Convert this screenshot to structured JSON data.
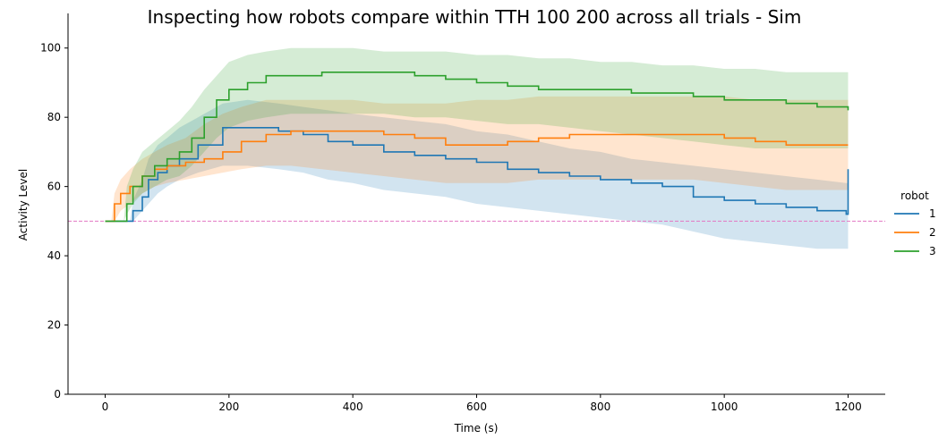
{
  "chart_data": {
    "type": "line",
    "title": "Inspecting how robots compare within TTH 100 200 across all trials - Sim",
    "xlabel": "Time (s)",
    "ylabel": "Activity Level",
    "xlim": [
      -60,
      1260
    ],
    "ylim": [
      0,
      110
    ],
    "x_ticks": [
      0,
      200,
      400,
      600,
      800,
      1000,
      1200
    ],
    "y_ticks": [
      0,
      20,
      40,
      60,
      80,
      100
    ],
    "grid": false,
    "reference_line": {
      "y": 50,
      "color": "#e377c2",
      "style": "dashed"
    },
    "legend": {
      "title": "robot",
      "placement": "right"
    },
    "series": [
      {
        "name": "1",
        "color": "#1f77b4",
        "x": [
          0,
          40,
          45,
          60,
          70,
          85,
          100,
          120,
          150,
          190,
          230,
          280,
          320,
          360,
          400,
          450,
          500,
          550,
          600,
          650,
          700,
          750,
          800,
          850,
          900,
          950,
          1000,
          1050,
          1100,
          1150,
          1197,
          1200
        ],
        "y": [
          50,
          50,
          53,
          57,
          62,
          64,
          66,
          68,
          72,
          77,
          77,
          76,
          75,
          73,
          72,
          70,
          69,
          68,
          67,
          65,
          64,
          63,
          62,
          61,
          60,
          57,
          56,
          55,
          54,
          53,
          52,
          65
        ],
        "lower": [
          50,
          50,
          50,
          53,
          55,
          58,
          60,
          62,
          64,
          66,
          66,
          65,
          64,
          62,
          61,
          59,
          58,
          57,
          55,
          54,
          53,
          52,
          51,
          50,
          49,
          47,
          45,
          44,
          43,
          42,
          42,
          42
        ],
        "upper": [
          50,
          50,
          56,
          62,
          68,
          72,
          74,
          77,
          80,
          84,
          85,
          84,
          83,
          82,
          81,
          80,
          79,
          78,
          76,
          75,
          73,
          71,
          70,
          68,
          67,
          66,
          65,
          64,
          63,
          62,
          61,
          61
        ]
      },
      {
        "name": "2",
        "color": "#ff7f0e",
        "x": [
          0,
          10,
          15,
          25,
          40,
          60,
          80,
          100,
          130,
          160,
          190,
          220,
          260,
          300,
          350,
          400,
          450,
          500,
          550,
          600,
          650,
          700,
          750,
          800,
          850,
          900,
          950,
          1000,
          1050,
          1100,
          1150,
          1200
        ],
        "y": [
          50,
          50,
          55,
          58,
          60,
          63,
          65,
          66,
          67,
          68,
          70,
          73,
          75,
          76,
          76,
          76,
          75,
          74,
          72,
          72,
          73,
          74,
          75,
          75,
          75,
          75,
          75,
          74,
          73,
          72,
          72,
          72
        ],
        "lower": [
          50,
          50,
          50,
          53,
          55,
          58,
          60,
          61,
          62,
          63,
          64,
          65,
          66,
          66,
          65,
          64,
          63,
          62,
          61,
          61,
          61,
          62,
          62,
          62,
          62,
          62,
          62,
          61,
          60,
          59,
          59,
          59
        ],
        "upper": [
          50,
          50,
          58,
          62,
          65,
          68,
          70,
          72,
          74,
          78,
          81,
          83,
          85,
          85,
          85,
          85,
          84,
          84,
          84,
          85,
          85,
          86,
          86,
          86,
          86,
          86,
          86,
          86,
          85,
          85,
          85,
          85
        ]
      },
      {
        "name": "3",
        "color": "#2ca02c",
        "x": [
          0,
          30,
          35,
          45,
          60,
          80,
          100,
          120,
          140,
          160,
          180,
          200,
          230,
          260,
          300,
          350,
          400,
          450,
          500,
          550,
          600,
          650,
          700,
          750,
          800,
          850,
          900,
          950,
          1000,
          1050,
          1100,
          1150,
          1200
        ],
        "y": [
          50,
          50,
          55,
          60,
          63,
          66,
          68,
          70,
          74,
          80,
          85,
          88,
          90,
          92,
          92,
          93,
          93,
          93,
          92,
          91,
          90,
          89,
          88,
          88,
          88,
          87,
          87,
          86,
          85,
          85,
          84,
          83,
          82
        ],
        "lower": [
          50,
          50,
          52,
          55,
          58,
          60,
          62,
          63,
          66,
          70,
          74,
          77,
          79,
          80,
          81,
          81,
          81,
          81,
          80,
          80,
          79,
          78,
          78,
          77,
          76,
          75,
          74,
          73,
          72,
          71,
          71,
          71,
          71
        ],
        "upper": [
          50,
          50,
          60,
          65,
          70,
          73,
          76,
          79,
          83,
          88,
          92,
          96,
          98,
          99,
          100,
          100,
          100,
          99,
          99,
          99,
          98,
          98,
          97,
          97,
          96,
          96,
          95,
          95,
          94,
          94,
          93,
          93,
          93
        ]
      }
    ]
  }
}
